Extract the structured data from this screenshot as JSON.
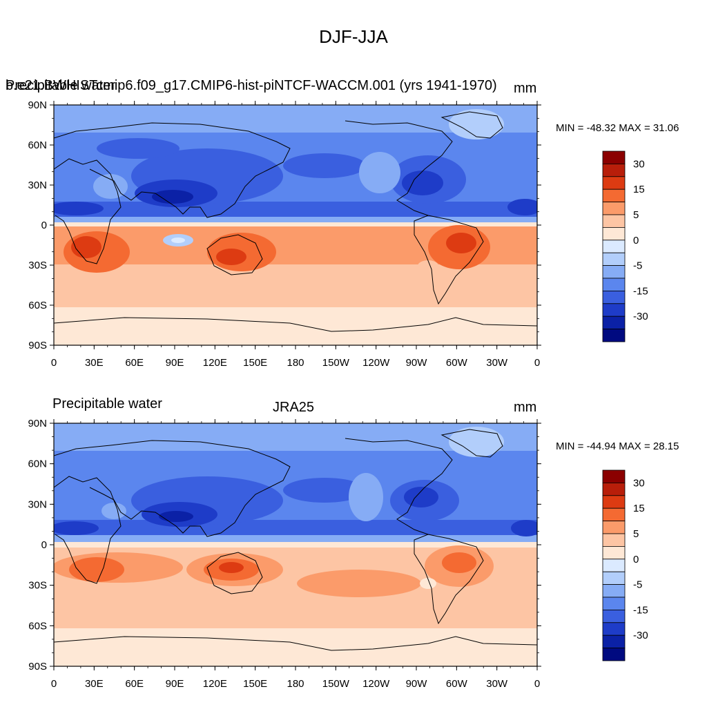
{
  "title": "DJF-JJA",
  "axis_ticks": {
    "lat": [
      "90N",
      "60N",
      "30N",
      "0",
      "30S",
      "60S",
      "90S"
    ],
    "lon": [
      "0",
      "30E",
      "60E",
      "90E",
      "120E",
      "150E",
      "180",
      "150W",
      "120W",
      "90W",
      "60W",
      "30W",
      "0"
    ]
  },
  "colorbar": {
    "labels": [
      "30",
      "15",
      "5",
      "0",
      "-5",
      "-15",
      "-30"
    ],
    "colors": [
      "#8b0000",
      "#b81e0a",
      "#dd3b12",
      "#f46a32",
      "#fb9b6a",
      "#fdc5a4",
      "#fee8d6",
      "#dbeaff",
      "#b2cefb",
      "#86acf5",
      "#5b86ee",
      "#3a5fdf",
      "#1e3cc8",
      "#0b21a6",
      "#000a80"
    ]
  },
  "panels": [
    {
      "left_label": "Precipitable water",
      "center_label": "b.e21.BWHISTcmip6.f09_g17.CMIP6-hist-piNTCF-WACCM.001 (yrs 1941-1970)",
      "units": "mm",
      "min_max": "MIN = -48.32 MAX =  31.06"
    },
    {
      "left_label": "Precipitable water",
      "center_label": "JRA25",
      "units": "mm",
      "min_max": "MIN = -44.94 MAX =  28.15"
    }
  ]
}
